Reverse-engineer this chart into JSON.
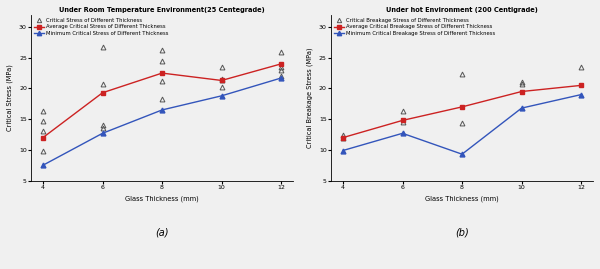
{
  "x": [
    4,
    6,
    8,
    10,
    12
  ],
  "a_title": "Under Room Temperature Environment(25 Centegrade)",
  "a_ylabel": "Critical Stress (MPa)",
  "a_xlabel": "Glass Thickness (mm)",
  "a_ylim": [
    5,
    32
  ],
  "a_yticks": [
    5,
    10,
    15,
    20,
    25,
    30
  ],
  "a_label_scatter": "Critical Stress of Different Thickness",
  "a_label_avg": "Average Critical Stress of Different Thickness",
  "a_label_min": "Minimum Critical Stress of Different Thickness",
  "a_scatter_points": [
    [
      9.8,
      13.0,
      14.7,
      16.3
    ],
    [
      13.5,
      14.0,
      20.8,
      26.8
    ],
    [
      18.3,
      21.2,
      24.4,
      26.3
    ],
    [
      20.3,
      21.3,
      21.5,
      23.5
    ],
    [
      22.0,
      23.0,
      23.5,
      26.0
    ]
  ],
  "a_avg": [
    12.0,
    19.3,
    22.5,
    21.3,
    24.0
  ],
  "a_min": [
    7.5,
    12.7,
    16.5,
    18.8,
    21.7
  ],
  "a_label": "(a)",
  "b_title": "Under hot Environment (200 Centigrade)",
  "b_ylabel": "Critical Breakage Stress (MPa)",
  "b_xlabel": "Glass Thickness (mm)",
  "b_ylim": [
    5,
    32
  ],
  "b_yticks": [
    5,
    10,
    15,
    20,
    25,
    30
  ],
  "b_label_scatter": "Critical Breakage Stress of Different Thickness",
  "b_label_avg": "Average Critical Breakage Stress of Different Thickness",
  "b_label_min": "Minimum Critical Breakage Stress of Different Thickness",
  "b_scatter_points": [
    [
      12.0,
      12.5
    ],
    [
      14.5,
      16.3
    ],
    [
      14.3,
      22.3
    ],
    [
      20.8,
      21.0
    ],
    [
      23.5
    ]
  ],
  "b_avg": [
    12.0,
    14.8,
    17.0,
    19.5,
    20.5
  ],
  "b_min": [
    9.9,
    12.7,
    9.3,
    16.8,
    19.0
  ],
  "b_label": "(b)",
  "color_scatter": "#555555",
  "color_avg": "#cc2222",
  "color_min": "#3355bb",
  "figsize": [
    6.0,
    2.69
  ],
  "dpi": 100
}
